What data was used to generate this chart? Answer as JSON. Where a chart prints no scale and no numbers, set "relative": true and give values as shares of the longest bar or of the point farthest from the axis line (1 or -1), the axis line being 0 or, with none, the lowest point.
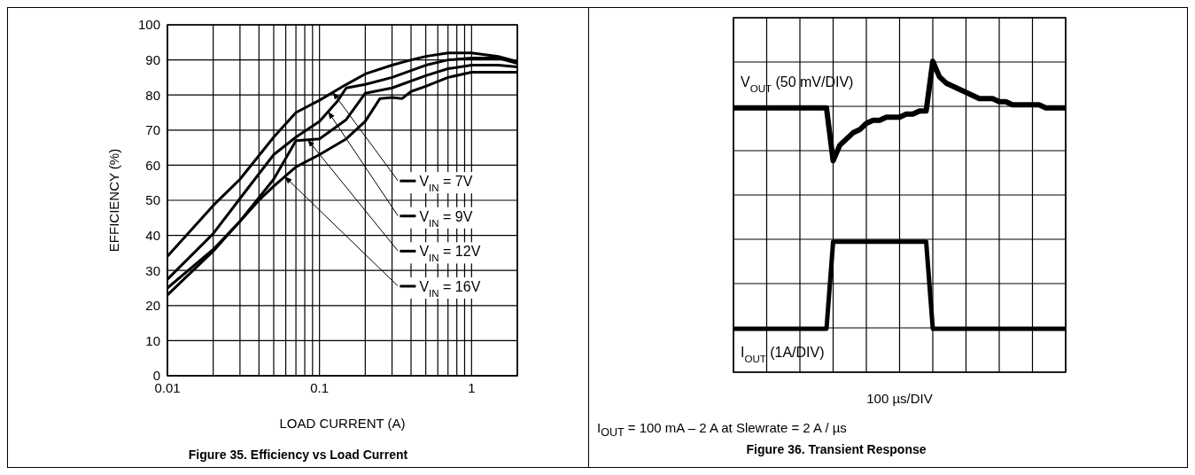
{
  "chart_data": [
    {
      "type": "line",
      "title": "Figure 35. Efficiency vs Load Current",
      "xlabel": "LOAD CURRENT (A)",
      "ylabel": "EFFICIENCY (%)",
      "log": "x",
      "grid": true,
      "legend": "right",
      "marker": "none",
      "line_style": "solid",
      "xlim": [
        0.01,
        2
      ],
      "ylim": [
        0,
        100
      ],
      "xticks": [
        0.01,
        {
          "value": 0.02,
          "label": null
        },
        {
          "value": 0.03,
          "label": null
        },
        {
          "value": 0.04,
          "label": null
        },
        {
          "value": 0.05,
          "label": null
        },
        {
          "value": 0.06,
          "label": null
        },
        {
          "value": 0.07,
          "label": null
        },
        {
          "value": 0.08,
          "label": null
        },
        {
          "value": 0.09,
          "label": null
        },
        0.1,
        {
          "value": 0.2,
          "label": null
        },
        {
          "value": 0.3,
          "label": null
        },
        {
          "value": 0.4,
          "label": null
        },
        {
          "value": 0.5,
          "label": null
        },
        {
          "value": 0.6,
          "label": null
        },
        {
          "value": 0.7,
          "label": null
        },
        {
          "value": 0.8,
          "label": null
        },
        {
          "value": 0.9,
          "label": null
        },
        1
      ],
      "yticks": [
        0,
        10,
        20,
        30,
        40,
        50,
        60,
        70,
        80,
        90,
        100
      ],
      "series": [
        {
          "name": "V$_{IN}$ = 7V",
          "color": "#000000",
          "x": [
            0.01,
            0.02,
            0.03,
            0.05,
            0.07,
            0.1,
            0.15,
            0.2,
            0.3,
            0.4,
            0.5,
            0.7,
            1,
            1.5,
            2
          ],
          "values": [
            34,
            48.5,
            56,
            68,
            75,
            78.5,
            83,
            86,
            88.5,
            90,
            91,
            92,
            92,
            91,
            89.5
          ]
        },
        {
          "name": "V$_{IN}$ = 9V",
          "color": "#000000",
          "x": [
            0.01,
            0.02,
            0.03,
            0.05,
            0.07,
            0.1,
            0.13,
            0.15,
            0.2,
            0.3,
            0.5,
            0.7,
            1,
            1.5,
            2
          ],
          "values": [
            27.5,
            40.5,
            50.5,
            63,
            68,
            72.5,
            78,
            82,
            83,
            85,
            88.5,
            90,
            90.5,
            90.5,
            89
          ]
        },
        {
          "name": "V$_{IN}$ = 12V",
          "color": "#000000",
          "x": [
            0.01,
            0.02,
            0.03,
            0.05,
            0.07,
            0.1,
            0.15,
            0.2,
            0.3,
            0.5,
            0.7,
            1,
            1.5,
            2
          ],
          "values": [
            25,
            36,
            44,
            56,
            67,
            67.5,
            73,
            80.5,
            82,
            85.5,
            87.5,
            88.5,
            88.5,
            88
          ]
        },
        {
          "name": "V$_{IN}$ = 16V",
          "color": "#000000",
          "x": [
            0.01,
            0.02,
            0.03,
            0.04,
            0.05,
            0.07,
            0.1,
            0.15,
            0.2,
            0.25,
            0.3,
            0.35,
            0.4,
            0.5,
            0.7,
            1,
            2
          ],
          "values": [
            23,
            35.5,
            44,
            50,
            54,
            59.5,
            63,
            67.5,
            72.5,
            79,
            79.3,
            79,
            81,
            82.5,
            85,
            86.5,
            86.5
          ]
        }
      ]
    },
    {
      "type": "line",
      "title": "Figure 36. Transient Response",
      "xlabel": "100 µs/DIV",
      "relative": true,
      "grid": true,
      "marker": "none",
      "line_style": "solid",
      "annotations": [
        "I$_{OUT}$ = 100 mA – 2 A at Slewrate = 2 A / µs"
      ],
      "categories": [
        null,
        null,
        null,
        null,
        null,
        null,
        null,
        null,
        null,
        null,
        null,
        null,
        null,
        null,
        null,
        null,
        null,
        null,
        null,
        null,
        null,
        null,
        null,
        null,
        null,
        null,
        null,
        null,
        null,
        null,
        null,
        null,
        null,
        null,
        null,
        null,
        null,
        null,
        null,
        null,
        null,
        null,
        null,
        null,
        null,
        null,
        null,
        null,
        null,
        null,
        null
      ],
      "series": [
        {
          "name": "V$_{OUT}$ (50 mV/DIV)",
          "color": "#000000",
          "values": [
            0.85,
            0.85,
            0.85,
            0.85,
            0.85,
            0.85,
            0.85,
            0.85,
            0.85,
            0.85,
            0.85,
            0.85,
            0.85,
            0.85,
            0.85,
            0.68,
            0.73,
            0.75,
            0.77,
            0.78,
            0.8,
            0.81,
            0.81,
            0.82,
            0.82,
            0.82,
            0.83,
            0.83,
            0.84,
            0.84,
            1,
            0.95,
            0.93,
            0.92,
            0.91,
            0.9,
            0.89,
            0.88,
            0.88,
            0.88,
            0.87,
            0.87,
            0.86,
            0.86,
            0.86,
            0.86,
            0.86,
            0.85,
            0.85,
            0.85,
            0.85
          ]
        },
        {
          "name": "I$_{OUT}$ (1A/DIV)",
          "color": "#000000",
          "values": [
            0.14,
            0.14,
            0.14,
            0.14,
            0.14,
            0.14,
            0.14,
            0.14,
            0.14,
            0.14,
            0.14,
            0.14,
            0.14,
            0.14,
            0.14,
            0.42,
            0.42,
            0.42,
            0.42,
            0.42,
            0.42,
            0.42,
            0.42,
            0.42,
            0.42,
            0.42,
            0.42,
            0.42,
            0.42,
            0.42,
            0.14,
            0.14,
            0.14,
            0.14,
            0.14,
            0.14,
            0.14,
            0.14,
            0.14,
            0.14,
            0.14,
            0.14,
            0.14,
            0.14,
            0.14,
            0.14,
            0.14,
            0.14,
            0.14,
            0.14,
            0.14
          ]
        }
      ]
    }
  ]
}
